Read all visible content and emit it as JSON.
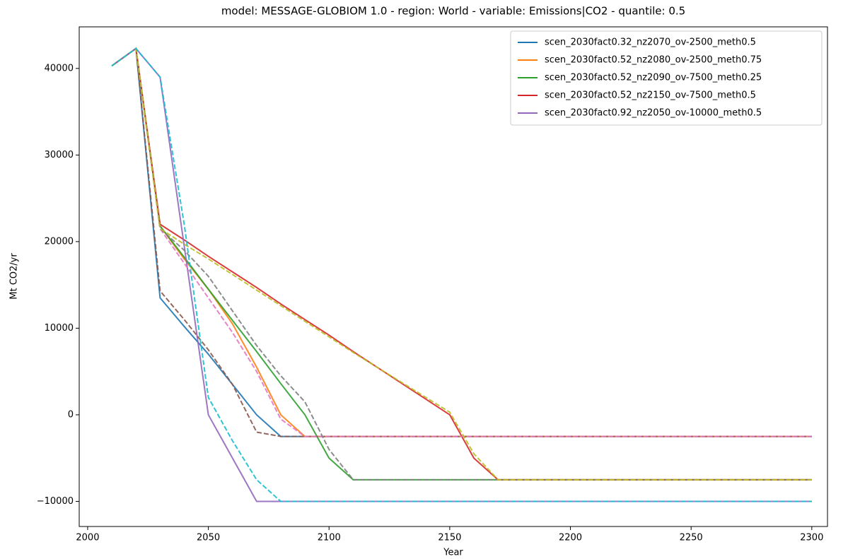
{
  "chart_data": {
    "type": "line",
    "title": "model: MESSAGE-GLOBIOM 1.0 - region: World - variable: Emissions|CO2 - quantile: 0.5",
    "x_label": "Year",
    "y_label": "Mt CO2/yr",
    "x": [
      2010,
      2020,
      2030,
      2040,
      2050,
      2060,
      2070,
      2080,
      2090,
      2100,
      2110,
      2150,
      2160,
      2170,
      2300
    ],
    "xlim": [
      1996.5,
      2306.5
    ],
    "xticks": [
      2000,
      2050,
      2100,
      2150,
      2200,
      2250,
      2300
    ],
    "ylim": [
      -12900,
      44800
    ],
    "yticks": [
      {
        "value": -10000,
        "label": "−10000"
      },
      0,
      10000,
      20000,
      30000,
      40000
    ],
    "legend": "upper right",
    "series": [
      {
        "name": "scen_2030fact0.32_nz2070_ov-2500_meth0.5",
        "color": "#1f77b4",
        "linestyle": "solid",
        "values": [
          40300,
          42300,
          13500,
          10200,
          7000,
          3500,
          0,
          -2500,
          -2500,
          -2500,
          -2500,
          -2500,
          -2500,
          -2500,
          -2500
        ]
      },
      {
        "name": "scen_2030fact0.52_nz2080_ov-2500_meth0.75",
        "color": "#ff7f0e",
        "linestyle": "solid",
        "values": [
          40300,
          42300,
          21800,
          18000,
          14500,
          10500,
          5500,
          0,
          -2500,
          -2500,
          -2500,
          -2500,
          -2500,
          -2500,
          -2500
        ]
      },
      {
        "name": "scen_2030fact0.52_nz2090_ov-7500_meth0.25",
        "color": "#2ca02c",
        "linestyle": "solid",
        "values": [
          40300,
          42300,
          21800,
          18200,
          14500,
          10900,
          7300,
          3600,
          0,
          -5000,
          -7500,
          -7500,
          -7500,
          -7500,
          -7500
        ]
      },
      {
        "name": "scen_2030fact0.52_nz2150_ov-7500_meth0.5",
        "color": "#d62728",
        "linestyle": "solid",
        "values": [
          40300,
          42300,
          22000,
          20200,
          18300,
          16500,
          14700,
          12800,
          11000,
          9200,
          7300,
          0,
          -5000,
          -7500,
          -7500
        ]
      },
      {
        "name": "scen_2030fact0.92_nz2050_ov-10000_meth0.5",
        "color": "#9467bd",
        "linestyle": "solid",
        "values": [
          40300,
          42300,
          39000,
          19500,
          0,
          -5000,
          -10000,
          -10000,
          -10000,
          -10000,
          -10000,
          -10000,
          -10000,
          -10000,
          -10000
        ]
      },
      {
        "color": "#8c564b",
        "linestyle": "dashed",
        "values": [
          40300,
          42300,
          14300,
          11000,
          7500,
          3500,
          -2000,
          -2500,
          -2500,
          -2500,
          -2500,
          -2500,
          -2500,
          -2500,
          -2500
        ]
      },
      {
        "color": "#e377c2",
        "linestyle": "dashed",
        "values": [
          40300,
          42300,
          21500,
          17500,
          13500,
          9500,
          5000,
          -500,
          -2500,
          -2500,
          -2500,
          -2500,
          -2500,
          -2500,
          -2500
        ]
      },
      {
        "color": "#7f7f7f",
        "linestyle": "dashed",
        "values": [
          40300,
          42300,
          21500,
          19000,
          16000,
          12000,
          8000,
          4500,
          1500,
          -4000,
          -7500,
          -7500,
          -7500,
          -7500,
          -7500
        ]
      },
      {
        "color": "#bcbd22",
        "linestyle": "dashed",
        "values": [
          40300,
          42300,
          21500,
          19700,
          18000,
          16200,
          14400,
          12600,
          10800,
          9000,
          7200,
          300,
          -4500,
          -7500,
          -7500
        ]
      },
      {
        "color": "#17becf",
        "linestyle": "dashed",
        "values": [
          40300,
          42300,
          39000,
          22000,
          2000,
          -3000,
          -7500,
          -10000,
          -10000,
          -10000,
          -10000,
          -10000,
          -10000,
          -10000,
          -10000
        ]
      }
    ]
  }
}
